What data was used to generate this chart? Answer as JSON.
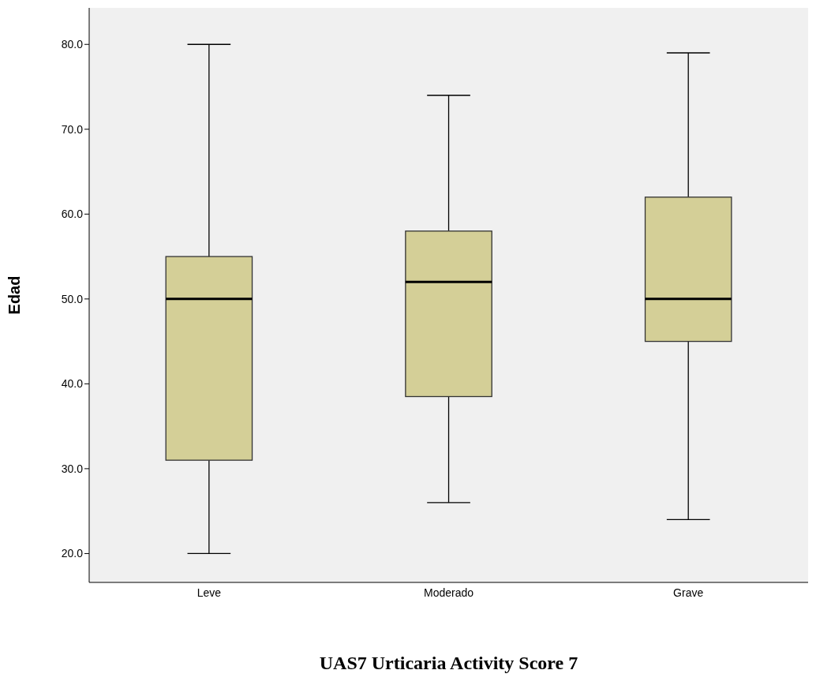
{
  "chart_data": {
    "type": "box",
    "xlabel": "UAS7 Urticaria Activity Score 7",
    "ylabel": "Edad",
    "categories": [
      "Leve",
      "Moderado",
      "Grave"
    ],
    "color": "#d4cf97",
    "boxes": [
      {
        "low": 20,
        "q1": 31,
        "median": 50,
        "q3": 55,
        "high": 80
      },
      {
        "low": 26,
        "q1": 38.5,
        "median": 52,
        "q3": 58,
        "high": 74
      },
      {
        "low": 24,
        "q1": 45,
        "median": 50,
        "q3": 62,
        "high": 79
      }
    ],
    "ylim": [
      16.6,
      84.3
    ],
    "yticks": [
      {
        "value": 20,
        "label": "20.0"
      },
      {
        "value": 30,
        "label": "30.0"
      },
      {
        "value": 40,
        "label": "40.0"
      },
      {
        "value": 50,
        "label": "50.0"
      },
      {
        "value": 60,
        "label": "60.0"
      },
      {
        "value": 70,
        "label": "70.0"
      },
      {
        "value": 80,
        "label": "80.0"
      }
    ]
  }
}
